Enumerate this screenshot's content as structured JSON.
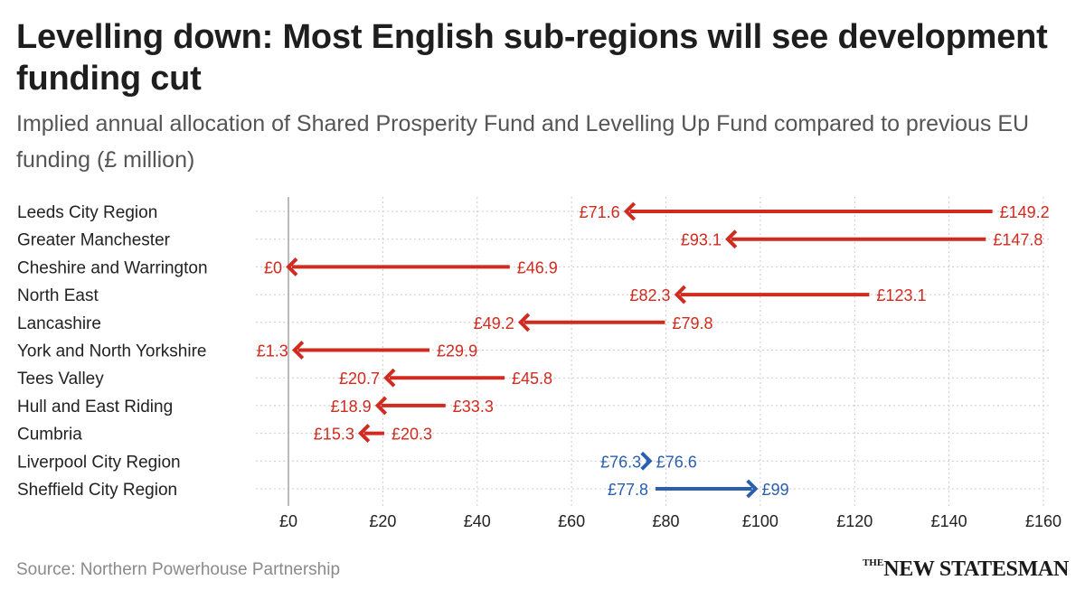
{
  "header": {
    "title": "Levelling down: Most English sub-regions will see development funding cut",
    "subtitle": "Implied annual allocation of Shared Prosperity Fund and Levelling Up Fund compared to previous EU funding (£ million)"
  },
  "footer": {
    "source": "Source: Northern Powerhouse Partnership",
    "brand_prefix": "THE",
    "brand_name": "NEW STATESMAN"
  },
  "colors": {
    "decrease": "#d12a1f",
    "increase": "#2a5fb0",
    "grid": "#cccccc",
    "zero_line": "#aaaaaa",
    "text": "#222222"
  },
  "chart_data": {
    "type": "arrow-dumbbell",
    "xlim": [
      0,
      160
    ],
    "ticks": [
      0,
      20,
      40,
      60,
      80,
      100,
      120,
      140,
      160
    ],
    "tick_labels": [
      "£0",
      "£20",
      "£40",
      "£60",
      "£80",
      "£100",
      "£120",
      "£140",
      "£160"
    ],
    "series": [
      {
        "name": "previous EU funding"
      },
      {
        "name": "Shared Prosperity Fund and Levelling Up Fund"
      }
    ],
    "rows": [
      {
        "region": "Leeds City Region",
        "from": 149.2,
        "to": 71.6,
        "from_label": "£149.2",
        "to_label": "£71.6"
      },
      {
        "region": "Greater Manchester",
        "from": 147.8,
        "to": 93.1,
        "from_label": "£147.8",
        "to_label": "£93.1"
      },
      {
        "region": "Cheshire and Warrington",
        "from": 46.9,
        "to": 0,
        "from_label": "£46.9",
        "to_label": "£0"
      },
      {
        "region": "North East",
        "from": 123.1,
        "to": 82.3,
        "from_label": "£123.1",
        "to_label": "£82.3"
      },
      {
        "region": "Lancashire",
        "from": 79.8,
        "to": 49.2,
        "from_label": "£79.8",
        "to_label": "£49.2"
      },
      {
        "region": "York and North Yorkshire",
        "from": 29.9,
        "to": 1.3,
        "from_label": "£29.9",
        "to_label": "£1.3"
      },
      {
        "region": "Tees Valley",
        "from": 45.8,
        "to": 20.7,
        "from_label": "£45.8",
        "to_label": "£20.7"
      },
      {
        "region": "Hull and East Riding",
        "from": 33.3,
        "to": 18.9,
        "from_label": "£33.3",
        "to_label": "£18.9"
      },
      {
        "region": "Cumbria",
        "from": 20.3,
        "to": 15.3,
        "from_label": "£20.3",
        "to_label": "£15.3"
      },
      {
        "region": "Liverpool City Region",
        "from": 76.3,
        "to": 76.6,
        "from_label": "£76.3",
        "to_label": "£76.6"
      },
      {
        "region": "Sheffield City Region",
        "from": 77.8,
        "to": 99,
        "from_label": "£77.8",
        "to_label": "£99"
      }
    ]
  }
}
